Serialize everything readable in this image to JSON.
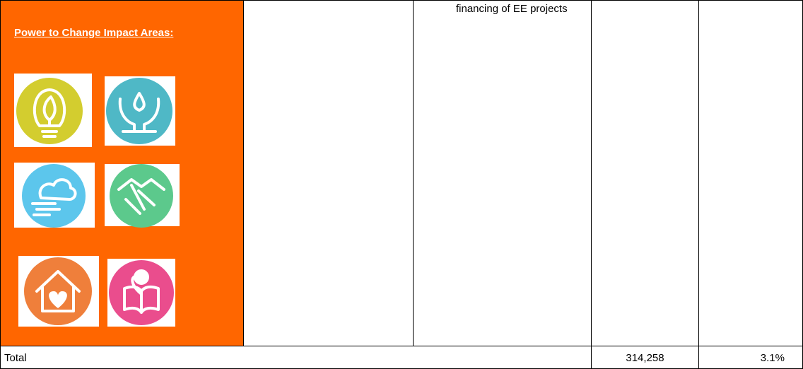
{
  "table": {
    "impact_heading": "Power to Change Impact Areas:",
    "row1_description": "financing of EE projects",
    "total_row": {
      "label": "Total",
      "amount": "314,258",
      "percent": "3.1%"
    }
  }
}
